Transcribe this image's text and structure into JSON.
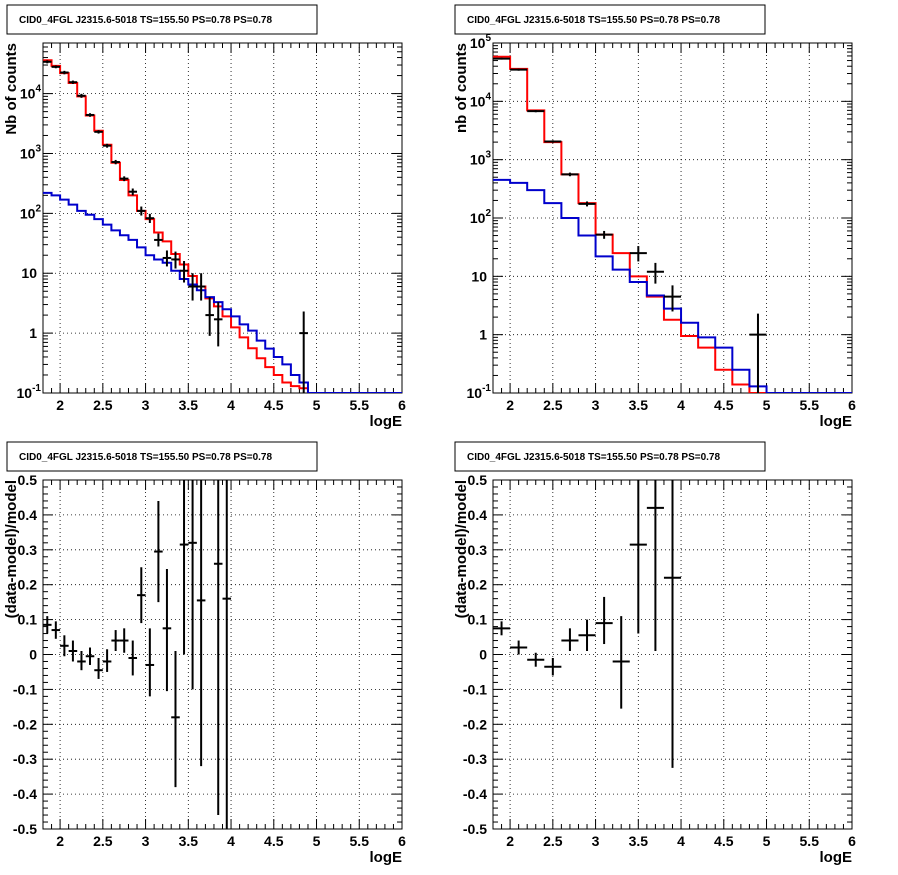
{
  "colors": {
    "data": "#000000",
    "total_model": "#ff0000",
    "background_model": "#0000cc",
    "grid": "#000000"
  },
  "chart_data": [
    {
      "type": "line",
      "title": "CID0_4FGL J2315.6-5018 TS=155.50 PS=0.78 PS=0.78",
      "xlabel": "logE",
      "ylabel": "Nb of counts",
      "xlim": [
        1.8,
        6.0
      ],
      "ylim": [
        0.1,
        70000
      ],
      "yscale": "log",
      "grid": true,
      "x_ticks": [
        "2",
        "2.5",
        "3",
        "3.5",
        "4",
        "4.5",
        "5",
        "5.5",
        "6"
      ],
      "y_ticks": [
        "10^-1",
        "1",
        "10",
        "10^2",
        "10^3",
        "10^4"
      ],
      "bin_width": 0.1,
      "series": [
        {
          "name": "total_model",
          "step": true,
          "bin_edges": [
            1.8,
            1.9,
            2.0,
            2.1,
            2.2,
            2.3,
            2.4,
            2.5,
            2.6,
            2.7,
            2.8,
            2.9,
            3.0,
            3.1,
            3.2,
            3.3,
            3.4,
            3.5,
            3.6,
            3.7,
            3.8,
            3.9,
            4.0,
            4.1,
            4.2,
            4.3,
            4.4,
            4.5,
            4.6,
            4.7,
            4.8,
            4.9,
            5.0,
            6.0
          ],
          "values": [
            36000,
            29000,
            22000,
            15000,
            9000,
            4300,
            2400,
            1400,
            700,
            360,
            200,
            110,
            80,
            48,
            34,
            21,
            14,
            9,
            6,
            3.8,
            2.8,
            1.9,
            1.25,
            0.85,
            0.56,
            0.38,
            0.27,
            0.2,
            0.15,
            0.13,
            0.12,
            0.1,
            0.1
          ]
        },
        {
          "name": "background_model",
          "step": true,
          "bin_edges": [
            1.8,
            1.9,
            2.0,
            2.1,
            2.2,
            2.3,
            2.4,
            2.5,
            2.6,
            2.7,
            2.8,
            2.9,
            3.0,
            3.1,
            3.2,
            3.3,
            3.4,
            3.5,
            3.6,
            3.7,
            3.8,
            3.9,
            4.0,
            4.1,
            4.2,
            4.3,
            4.4,
            4.5,
            4.6,
            4.7,
            4.8,
            4.9,
            5.0,
            6.0
          ],
          "values": [
            220,
            200,
            170,
            140,
            110,
            95,
            80,
            65,
            52,
            43,
            36,
            27,
            20,
            17,
            15,
            11,
            8,
            6.5,
            5.2,
            4,
            3.3,
            2.5,
            1.9,
            1.4,
            1.1,
            0.75,
            0.55,
            0.4,
            0.3,
            0.2,
            0.15,
            0.1,
            0.1
          ]
        },
        {
          "name": "data",
          "points": [
            {
              "x": 1.85,
              "y": 34000,
              "lo": 32000,
              "hi": 36000
            },
            {
              "x": 1.95,
              "y": 28000,
              "lo": 26500,
              "hi": 29500
            },
            {
              "x": 2.05,
              "y": 22500,
              "lo": 21000,
              "hi": 24000
            },
            {
              "x": 2.15,
              "y": 15500,
              "lo": 14500,
              "hi": 16500
            },
            {
              "x": 2.25,
              "y": 9200,
              "lo": 8500,
              "hi": 9900
            },
            {
              "x": 2.35,
              "y": 4400,
              "lo": 4100,
              "hi": 4700
            },
            {
              "x": 2.45,
              "y": 2300,
              "lo": 2150,
              "hi": 2450
            },
            {
              "x": 2.55,
              "y": 1350,
              "lo": 1250,
              "hi": 1450
            },
            {
              "x": 2.65,
              "y": 720,
              "lo": 660,
              "hi": 780
            },
            {
              "x": 2.75,
              "y": 380,
              "lo": 345,
              "hi": 415
            },
            {
              "x": 2.85,
              "y": 230,
              "lo": 200,
              "hi": 260
            },
            {
              "x": 2.95,
              "y": 110,
              "lo": 92,
              "hi": 130
            },
            {
              "x": 3.05,
              "y": 83,
              "lo": 69,
              "hi": 98
            },
            {
              "x": 3.15,
              "y": 36,
              "lo": 28,
              "hi": 46
            },
            {
              "x": 3.25,
              "y": 18,
              "lo": 13,
              "hi": 24
            },
            {
              "x": 3.35,
              "y": 17,
              "lo": 12,
              "hi": 23
            },
            {
              "x": 3.45,
              "y": 11,
              "lo": 7,
              "hi": 16
            },
            {
              "x": 3.55,
              "y": 6,
              "lo": 3.5,
              "hi": 10
            },
            {
              "x": 3.65,
              "y": 6,
              "lo": 3.5,
              "hi": 10
            },
            {
              "x": 3.75,
              "y": 2,
              "lo": 0.9,
              "hi": 4
            },
            {
              "x": 3.85,
              "y": 1.7,
              "lo": 0.6,
              "hi": 3.3
            },
            {
              "x": 4.85,
              "y": 1,
              "lo": 0.1,
              "hi": 2.3
            }
          ]
        }
      ]
    },
    {
      "type": "line",
      "title": "CID0_4FGL J2315.6-5018 TS=155.50 PS=0.78 PS=0.78",
      "xlabel": "logE",
      "ylabel": "nb of counts",
      "xlim": [
        1.8,
        6.0
      ],
      "ylim": [
        0.1,
        100000
      ],
      "yscale": "log",
      "grid": true,
      "x_ticks": [
        "2",
        "2.5",
        "3",
        "3.5",
        "4",
        "4.5",
        "5",
        "5.5",
        "6"
      ],
      "y_ticks": [
        "10^-1",
        "1",
        "10",
        "10^2",
        "10^3",
        "10^4",
        "10^5"
      ],
      "bin_width": 0.2,
      "series": [
        {
          "name": "total_model",
          "step": true,
          "bin_edges": [
            1.8,
            2.0,
            2.2,
            2.4,
            2.6,
            2.8,
            3.0,
            3.2,
            3.4,
            3.6,
            3.8,
            4.0,
            4.2,
            4.4,
            4.6,
            4.8,
            5.0,
            6.0
          ],
          "values": [
            58000,
            36000,
            7000,
            2000,
            560,
            180,
            52,
            25,
            10,
            4.5,
            1.8,
            0.95,
            0.6,
            0.25,
            0.14,
            0.1,
            0.1
          ]
        },
        {
          "name": "background_model",
          "step": true,
          "bin_edges": [
            1.8,
            2.0,
            2.2,
            2.4,
            2.6,
            2.8,
            3.0,
            3.2,
            3.4,
            3.6,
            3.8,
            4.0,
            4.2,
            4.4,
            4.6,
            4.8,
            5.0,
            6.0
          ],
          "values": [
            450,
            400,
            300,
            180,
            100,
            50,
            22,
            13,
            8,
            4.7,
            2.8,
            1.6,
            0.9,
            0.6,
            0.25,
            0.13,
            0.1
          ]
        },
        {
          "name": "data",
          "points": [
            {
              "x": 1.9,
              "y": 54000,
              "lo": 52000,
              "hi": 56000
            },
            {
              "x": 2.1,
              "y": 35000,
              "lo": 33500,
              "hi": 36500
            },
            {
              "x": 2.3,
              "y": 6800,
              "lo": 6500,
              "hi": 7100
            },
            {
              "x": 2.5,
              "y": 2050,
              "lo": 1950,
              "hi": 2150
            },
            {
              "x": 2.7,
              "y": 560,
              "lo": 520,
              "hi": 600
            },
            {
              "x": 2.9,
              "y": 175,
              "lo": 158,
              "hi": 192
            },
            {
              "x": 3.1,
              "y": 52,
              "lo": 44,
              "hi": 60
            },
            {
              "x": 3.5,
              "y": 25,
              "lo": 18,
              "hi": 33
            },
            {
              "x": 3.7,
              "y": 12,
              "lo": 7.5,
              "hi": 17
            },
            {
              "x": 3.9,
              "y": 4.5,
              "lo": 2.5,
              "hi": 7
            },
            {
              "x": 4.9,
              "y": 1,
              "lo": 0.1,
              "hi": 2.3
            }
          ]
        }
      ]
    },
    {
      "type": "scatter",
      "title": "CID0_4FGL J2315.6-5018 TS=155.50 PS=0.78 PS=0.78",
      "xlabel": "logE",
      "ylabel": "(data-model)/model",
      "xlim": [
        1.8,
        6.0
      ],
      "ylim": [
        -0.5,
        0.5
      ],
      "grid": true,
      "x_ticks": [
        "2",
        "2.5",
        "3",
        "3.5",
        "4",
        "4.5",
        "5",
        "5.5",
        "6"
      ],
      "y_ticks": [
        "-0.5",
        "-0.4",
        "-0.3",
        "-0.2",
        "-0.1",
        "0",
        "0.1",
        "0.2",
        "0.3",
        "0.4",
        "0.5"
      ],
      "bin_width": 0.1,
      "series": [
        {
          "name": "residuals",
          "points": [
            {
              "x": 1.85,
              "y": 0.085,
              "lo": 0.06,
              "hi": 0.11
            },
            {
              "x": 1.95,
              "y": 0.07,
              "lo": 0.045,
              "hi": 0.095
            },
            {
              "x": 2.05,
              "y": 0.025,
              "lo": -0.005,
              "hi": 0.055
            },
            {
              "x": 2.15,
              "y": 0.01,
              "lo": -0.02,
              "hi": 0.04
            },
            {
              "x": 2.25,
              "y": -0.02,
              "lo": -0.045,
              "hi": 0.01
            },
            {
              "x": 2.35,
              "y": -0.005,
              "lo": -0.03,
              "hi": 0.02
            },
            {
              "x": 2.45,
              "y": -0.045,
              "lo": -0.07,
              "hi": -0.01
            },
            {
              "x": 2.55,
              "y": -0.02,
              "lo": -0.05,
              "hi": 0.015
            },
            {
              "x": 2.65,
              "y": 0.04,
              "lo": 0.01,
              "hi": 0.07
            },
            {
              "x": 2.75,
              "y": 0.04,
              "lo": 0.005,
              "hi": 0.075
            },
            {
              "x": 2.85,
              "y": -0.01,
              "lo": -0.06,
              "hi": 0.04
            },
            {
              "x": 2.95,
              "y": 0.17,
              "lo": 0.09,
              "hi": 0.25
            },
            {
              "x": 3.05,
              "y": -0.03,
              "lo": -0.12,
              "hi": 0.075
            },
            {
              "x": 3.15,
              "y": 0.295,
              "lo": 0.15,
              "hi": 0.44
            },
            {
              "x": 3.25,
              "y": 0.075,
              "lo": -0.105,
              "hi": 0.245
            },
            {
              "x": 3.35,
              "y": -0.18,
              "lo": -0.38,
              "hi": 0.01
            },
            {
              "x": 3.45,
              "y": 0.315,
              "lo": 0.0,
              "hi": 0.5
            },
            {
              "x": 3.55,
              "y": 0.32,
              "lo": -0.1,
              "hi": 0.5
            },
            {
              "x": 3.65,
              "y": 0.155,
              "lo": -0.32,
              "hi": 0.5
            },
            {
              "x": 3.85,
              "y": 0.26,
              "lo": -0.46,
              "hi": 0.5
            },
            {
              "x": 3.95,
              "y": 0.16,
              "lo": -0.5,
              "hi": 0.5
            }
          ]
        }
      ]
    },
    {
      "type": "scatter",
      "title": "CID0_4FGL J2315.6-5018 TS=155.50 PS=0.78 PS=0.78",
      "xlabel": "logE",
      "ylabel": "(data-model)/model",
      "xlim": [
        1.8,
        6.0
      ],
      "ylim": [
        -0.5,
        0.5
      ],
      "grid": true,
      "x_ticks": [
        "2",
        "2.5",
        "3",
        "3.5",
        "4",
        "4.5",
        "5",
        "5.5",
        "6"
      ],
      "y_ticks": [
        "-0.5",
        "-0.4",
        "-0.3",
        "-0.2",
        "-0.1",
        "0",
        "0.1",
        "0.2",
        "0.3",
        "0.4",
        "0.5"
      ],
      "bin_width": 0.2,
      "series": [
        {
          "name": "residuals",
          "points": [
            {
              "x": 1.9,
              "y": 0.075,
              "lo": 0.055,
              "hi": 0.095
            },
            {
              "x": 2.1,
              "y": 0.02,
              "lo": 0.0,
              "hi": 0.04
            },
            {
              "x": 2.3,
              "y": -0.015,
              "lo": -0.035,
              "hi": 0.005
            },
            {
              "x": 2.5,
              "y": -0.035,
              "lo": -0.06,
              "hi": -0.01
            },
            {
              "x": 2.7,
              "y": 0.04,
              "lo": 0.01,
              "hi": 0.075
            },
            {
              "x": 2.9,
              "y": 0.055,
              "lo": 0.01,
              "hi": 0.1
            },
            {
              "x": 3.1,
              "y": 0.09,
              "lo": 0.03,
              "hi": 0.165
            },
            {
              "x": 3.3,
              "y": -0.02,
              "lo": -0.155,
              "hi": 0.11
            },
            {
              "x": 3.5,
              "y": 0.315,
              "lo": 0.06,
              "hi": 0.5
            },
            {
              "x": 3.7,
              "y": 0.42,
              "lo": 0.01,
              "hi": 0.5
            },
            {
              "x": 3.9,
              "y": 0.22,
              "lo": -0.325,
              "hi": 0.5
            }
          ]
        }
      ]
    }
  ]
}
